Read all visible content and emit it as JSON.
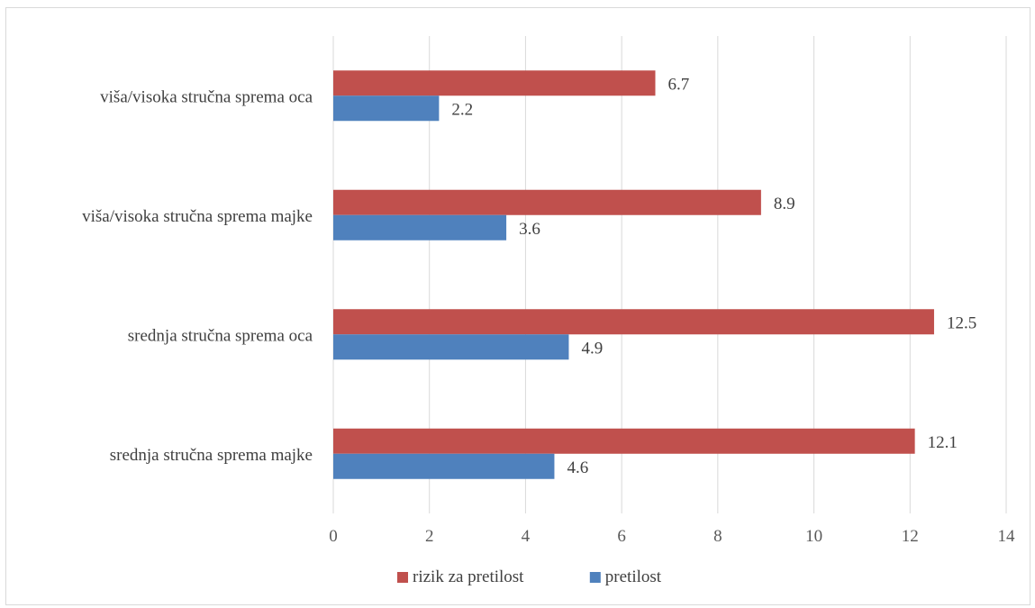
{
  "chart_data": {
    "type": "bar",
    "orientation": "horizontal",
    "categories": [
      "viša/visoka stručna sprema oca",
      "viša/visoka stručna sprema majke",
      "srednja stručna sprema oca",
      "srednja stručna sprema majke"
    ],
    "series": [
      {
        "name": "rizik za pretilost",
        "color": "#c0504d",
        "values": [
          6.7,
          8.9,
          12.5,
          12.1
        ]
      },
      {
        "name": "pretilost",
        "color": "#4f81bd",
        "values": [
          2.2,
          3.6,
          4.9,
          4.6
        ]
      }
    ],
    "xlim": [
      0,
      14
    ],
    "xticks": [
      "0",
      "2",
      "4",
      "6",
      "8",
      "10",
      "12",
      "14"
    ],
    "grid": true,
    "legend": "bottom",
    "title": "",
    "xlabel": "",
    "ylabel": ""
  }
}
